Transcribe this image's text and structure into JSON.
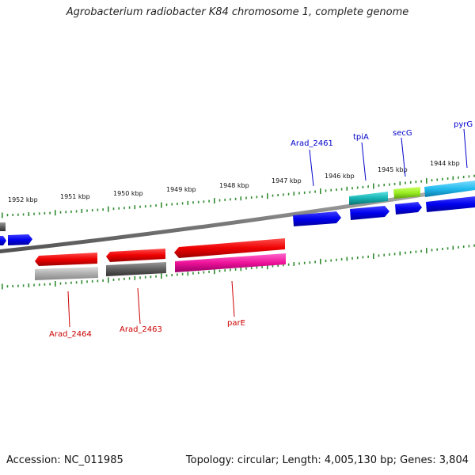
{
  "title": "Agrobacterium radiobacter K84 chromosome 1, complete genome",
  "accession": "Accession: NC_011985",
  "stats": "Topology: circular; Length: 4,005,130 bp; Genes: 3,804",
  "kbp_labels": [
    "1952 kbp",
    "1951 kbp",
    "1950 kbp",
    "1949 kbp",
    "1948 kbp",
    "1947 kbp",
    "1946 kbp",
    "1945 kbp",
    "1944 kbp"
  ],
  "genes_top": [
    "Arad_2461",
    "tpiA",
    "secG",
    "pyrG"
  ],
  "genes_bottom": [
    "Arad_2464",
    "Arad_2463",
    "parE"
  ],
  "colors": {
    "backbone": "#808080",
    "tick": "#2e8b2e",
    "blue_label": "#0000cc",
    "red_label": "#cc0000",
    "cds_blue": "#0000ee",
    "cds_red": "#ee0000",
    "teal": "#17b3b3",
    "lime": "#99ee22",
    "cyan": "#22bbee",
    "grey_light": "#b0b0b0",
    "grey_dark": "#606060",
    "magenta": "#ee1199"
  }
}
